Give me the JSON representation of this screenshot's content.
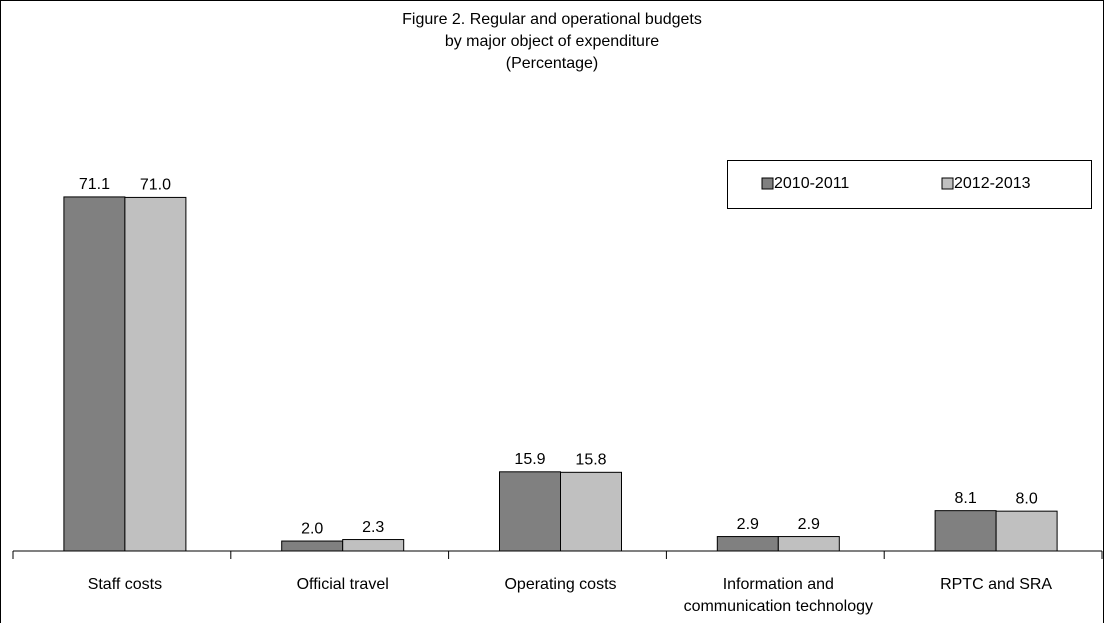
{
  "chart_data": {
    "type": "bar",
    "title": [
      "Figure 2.  Regular and operational budgets",
      "by major object of expenditure",
      "(Percentage)"
    ],
    "categories": [
      "Staff costs",
      "Official travel",
      "Operating costs",
      "Information and communication technology",
      "RPTC and SRA"
    ],
    "series": [
      {
        "name": "2010-2011",
        "color": "#808080",
        "values": [
          71.1,
          2.0,
          15.9,
          2.9,
          8.1
        ],
        "value_labels": [
          "71.1",
          "2.0",
          "15.9",
          "2.9",
          "8.1"
        ]
      },
      {
        "name": "2012-2013",
        "color": "#c0c0c0",
        "values": [
          71.0,
          2.3,
          15.8,
          2.9,
          8.0
        ],
        "value_labels": [
          "71.0",
          "2.3",
          "15.8",
          "2.9",
          "8.0"
        ]
      }
    ],
    "legend": "top-right"
  }
}
